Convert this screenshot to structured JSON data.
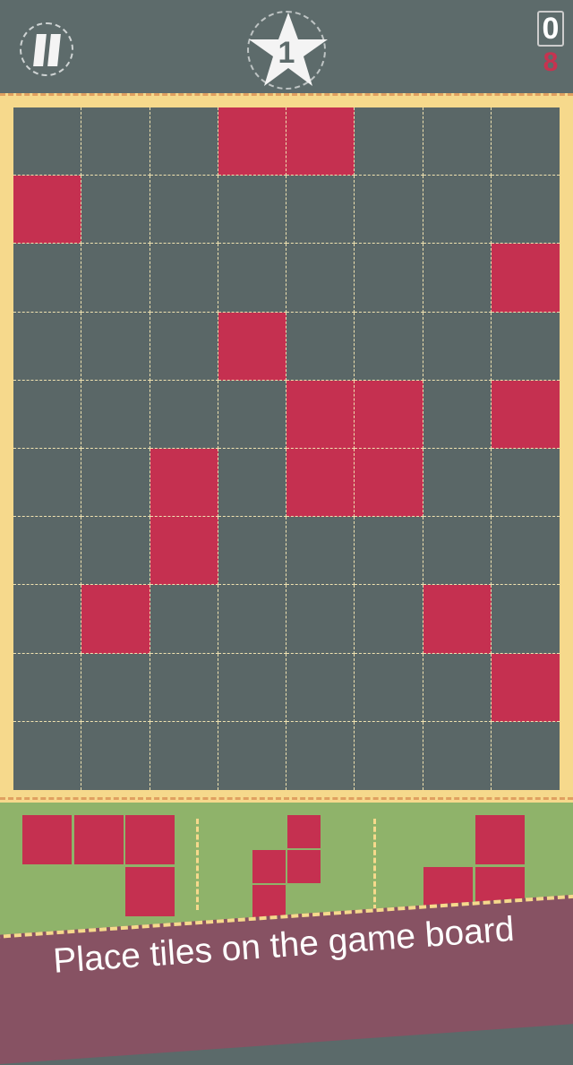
{
  "header": {
    "pause_icon": "pause-icon",
    "level": "1",
    "level_icon": "star-icon",
    "score": "0",
    "goal": "8"
  },
  "board": {
    "columns": 8,
    "rows": 10,
    "filled": [
      [
        0,
        3
      ],
      [
        0,
        4
      ],
      [
        1,
        0
      ],
      [
        2,
        7
      ],
      [
        3,
        3
      ],
      [
        4,
        4
      ],
      [
        4,
        5
      ],
      [
        4,
        7
      ],
      [
        5,
        2
      ],
      [
        5,
        4
      ],
      [
        5,
        5
      ],
      [
        6,
        2
      ],
      [
        7,
        1
      ],
      [
        7,
        6
      ],
      [
        8,
        7
      ]
    ]
  },
  "pieces": [
    {
      "cells": [
        [
          0,
          0
        ],
        [
          0,
          1
        ],
        [
          0,
          2
        ],
        [
          1,
          2
        ]
      ]
    },
    {
      "cells": [
        [
          0,
          1
        ],
        [
          1,
          0
        ],
        [
          1,
          1
        ],
        [
          2,
          0
        ]
      ]
    },
    {
      "cells": [
        [
          0,
          1
        ],
        [
          1,
          0
        ],
        [
          1,
          1
        ]
      ]
    }
  ],
  "colors": {
    "tile": "#c53050",
    "board": "#5a6767",
    "frame": "#f6d98c",
    "tray": "#8fb36a",
    "banner": "#875263"
  },
  "banner": {
    "text": "Place tiles on the game board"
  }
}
